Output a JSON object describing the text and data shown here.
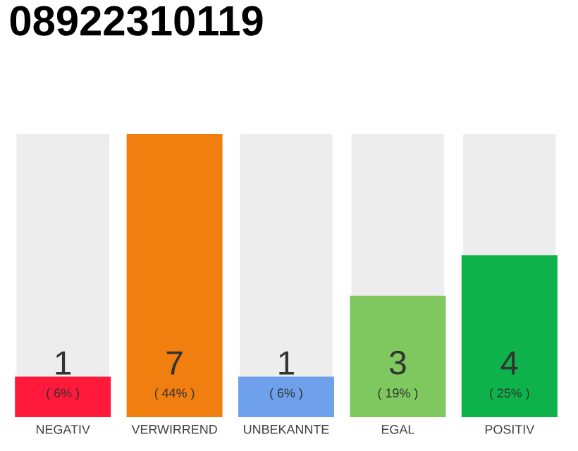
{
  "chart_data": {
    "type": "bar",
    "title": "08922310119",
    "categories": [
      "NEGATIV",
      "VERWIRREND",
      "UNBEKANNTE",
      "EGAL",
      "POSITIV"
    ],
    "values": [
      1,
      7,
      1,
      3,
      4
    ],
    "colors": [
      "#ff1a3c",
      "#f07f0f",
      "#6ea0eb",
      "#7ec85f",
      "#0db34a"
    ],
    "ylim": [
      0,
      7
    ],
    "data_labels": true,
    "tick_labels": "x",
    "annotations": [
      "( 6% )",
      "( 44% )",
      "( 6% )",
      "( 19% )",
      "( 25% )"
    ]
  }
}
